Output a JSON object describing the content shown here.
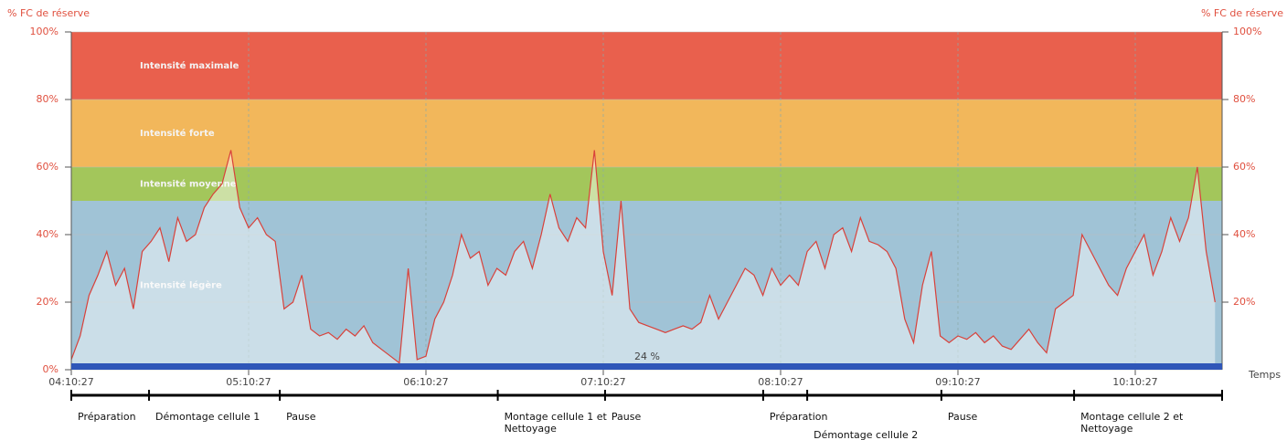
{
  "chart_data": {
    "type": "line",
    "y_label": "% FC de réserve",
    "y2_label": "% FC de réserve",
    "x_label": "Temps",
    "xlim": [
      "04:10:27",
      "10:39:50"
    ],
    "xticks": [
      "04:10:27",
      "05:10:27",
      "06:10:27",
      "07:10:27",
      "08:10:27",
      "09:10:27",
      "10:10:27"
    ],
    "ylim": [
      0,
      100
    ],
    "yticks": [
      {
        "value": 0,
        "label": "0%"
      },
      {
        "value": 20,
        "label": "20%"
      },
      {
        "value": 40,
        "label": "40%"
      },
      {
        "value": 60,
        "label": "60%"
      },
      {
        "value": 80,
        "label": "80%"
      },
      {
        "value": 100,
        "label": "100%"
      }
    ],
    "y2lim": [
      0,
      100
    ],
    "y2ticks": [
      {
        "value": 20,
        "label": "20%"
      },
      {
        "value": 40,
        "label": "40%"
      },
      {
        "value": 60,
        "label": "60%"
      },
      {
        "value": 80,
        "label": "80%"
      },
      {
        "value": 100,
        "label": "100%"
      }
    ],
    "zones": [
      {
        "label": "Intensité légère",
        "from": 0,
        "to": 50,
        "color": "#a0c3d6"
      },
      {
        "label": "Intensité moyenne",
        "from": 50,
        "to": 60,
        "color": "#a3c65b"
      },
      {
        "label": "Intensité forte",
        "from": 60,
        "to": 80,
        "color": "#f2b75b"
      },
      {
        "label": "Intensité maximale",
        "from": 80,
        "to": 100,
        "color": "#e9604d"
      }
    ],
    "summary_label": "24 %",
    "x": [
      "04:10:27",
      "04:13:27",
      "04:16:27",
      "04:19:27",
      "04:22:27",
      "04:25:27",
      "04:28:27",
      "04:31:27",
      "04:34:27",
      "04:37:27",
      "04:40:27",
      "04:43:27",
      "04:46:27",
      "04:49:27",
      "04:52:27",
      "04:55:27",
      "04:58:27",
      "05:01:27",
      "05:04:27",
      "05:07:27",
      "05:10:27",
      "05:13:27",
      "05:16:27",
      "05:19:27",
      "05:22:27",
      "05:25:27",
      "05:28:27",
      "05:31:27",
      "05:34:27",
      "05:37:27",
      "05:40:27",
      "05:43:27",
      "05:46:27",
      "05:49:27",
      "05:52:27",
      "05:55:27",
      "05:58:27",
      "06:01:27",
      "06:04:27",
      "06:07:27",
      "06:10:27",
      "06:13:27",
      "06:16:27",
      "06:19:27",
      "06:22:27",
      "06:25:27",
      "06:28:27",
      "06:31:27",
      "06:34:27",
      "06:37:27",
      "06:40:27",
      "06:43:27",
      "06:46:27",
      "06:49:27",
      "06:52:27",
      "06:55:27",
      "06:58:27",
      "07:01:27",
      "07:04:27",
      "07:07:27",
      "07:10:27",
      "07:13:27",
      "07:16:27",
      "07:19:27",
      "07:22:27",
      "07:25:27",
      "07:28:27",
      "07:31:27",
      "07:34:27",
      "07:37:27",
      "07:40:27",
      "07:43:27",
      "07:46:27",
      "07:49:27",
      "07:52:27",
      "07:55:27",
      "07:58:27",
      "08:01:27",
      "08:04:27",
      "08:07:27",
      "08:10:27",
      "08:13:27",
      "08:16:27",
      "08:19:27",
      "08:22:27",
      "08:25:27",
      "08:28:27",
      "08:31:27",
      "08:34:27",
      "08:37:27",
      "08:40:27",
      "08:43:27",
      "08:46:27",
      "08:49:27",
      "08:52:27",
      "08:55:27",
      "08:58:27",
      "09:01:27",
      "09:04:27",
      "09:07:27",
      "09:10:27",
      "09:13:27",
      "09:16:27",
      "09:19:27",
      "09:22:27",
      "09:25:27",
      "09:28:27",
      "09:31:27",
      "09:34:27",
      "09:37:27",
      "09:40:27",
      "09:43:27",
      "09:46:27",
      "09:49:27",
      "09:52:27",
      "09:55:27",
      "09:58:27",
      "10:01:27",
      "10:04:27",
      "10:07:27",
      "10:10:27",
      "10:13:27",
      "10:16:27",
      "10:19:27",
      "10:22:27",
      "10:25:27",
      "10:28:27",
      "10:31:27",
      "10:34:27",
      "10:37:27"
    ],
    "series": [
      {
        "color": "#d9413a",
        "values": [
          3,
          10,
          22,
          28,
          35,
          25,
          30,
          18,
          35,
          38,
          42,
          32,
          45,
          38,
          40,
          48,
          52,
          55,
          65,
          48,
          42,
          45,
          40,
          38,
          18,
          20,
          28,
          12,
          10,
          11,
          9,
          12,
          10,
          13,
          8,
          6,
          4,
          2,
          30,
          3,
          4,
          15,
          20,
          28,
          40,
          33,
          35,
          25,
          30,
          28,
          35,
          38,
          30,
          40,
          52,
          42,
          38,
          45,
          42,
          65,
          35,
          22,
          50,
          18,
          14,
          13,
          12,
          11,
          12,
          13,
          12,
          14,
          22,
          15,
          20,
          25,
          30,
          28,
          22,
          30,
          25,
          28,
          25,
          35,
          38,
          30,
          40,
          42,
          35,
          45,
          38,
          37,
          35,
          30,
          15,
          8,
          25,
          35,
          10,
          8,
          10,
          9,
          11,
          8,
          10,
          7,
          6,
          9,
          12,
          8,
          5,
          18,
          20,
          22,
          40,
          35,
          30,
          25,
          22,
          30,
          35,
          40,
          28,
          35,
          45,
          38,
          45,
          60,
          35,
          20
        ]
      }
    ],
    "phases": [
      {
        "lines": [
          "Préparation"
        ],
        "start": "04:10:27",
        "end": "04:36:45"
      },
      {
        "lines": [
          "Démontage cellule 1"
        ],
        "start": "04:36:45",
        "end": "05:21:00"
      },
      {
        "lines": [
          "Pause"
        ],
        "start": "05:21:00",
        "end": "06:34:45"
      },
      {
        "lines": [
          "Montage cellule 1 et",
          "Nettoyage"
        ],
        "start": "06:34:45",
        "end": "07:11:03"
      },
      {
        "lines": [
          "Pause"
        ],
        "start": "07:11:03",
        "end": "08:04:33"
      },
      {
        "lines": [
          "Préparation"
        ],
        "start": "08:04:33",
        "end": "08:19:27"
      },
      {
        "lines": [
          "Démontage cellule 2"
        ],
        "start": "08:19:27",
        "end": "09:04:51"
      },
      {
        "lines": [
          "Pause"
        ],
        "start": "09:04:51",
        "end": "09:49:45"
      },
      {
        "lines": [
          "Montage cellule 2 et",
          "Nettoyage"
        ],
        "start": "09:49:45",
        "end": "10:39:50"
      }
    ]
  }
}
